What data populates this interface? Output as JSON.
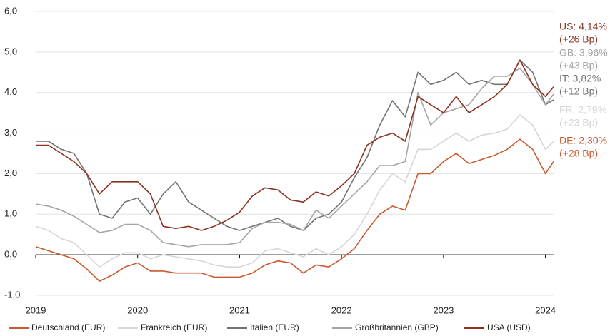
{
  "chart_data": {
    "type": "line",
    "x": [
      2019,
      2019.125,
      2019.25,
      2019.375,
      2019.5,
      2019.625,
      2019.75,
      2019.875,
      2020,
      2020.125,
      2020.25,
      2020.375,
      2020.5,
      2020.625,
      2020.75,
      2020.875,
      2021,
      2021.125,
      2021.25,
      2021.375,
      2021.5,
      2021.625,
      2021.75,
      2021.875,
      2022,
      2022.125,
      2022.25,
      2022.375,
      2022.5,
      2022.625,
      2022.75,
      2022.875,
      2023,
      2023.125,
      2023.25,
      2023.375,
      2023.5,
      2023.625,
      2023.75,
      2023.875,
      2024,
      2024.08
    ],
    "series": [
      {
        "name": "Deutschland (EUR)",
        "color": "#c95a2f",
        "values": [
          0.2,
          0.1,
          0.0,
          -0.1,
          -0.35,
          -0.65,
          -0.5,
          -0.3,
          -0.2,
          -0.4,
          -0.4,
          -0.45,
          -0.45,
          -0.45,
          -0.55,
          -0.55,
          -0.55,
          -0.45,
          -0.25,
          -0.15,
          -0.2,
          -0.45,
          -0.25,
          -0.3,
          -0.1,
          0.15,
          0.6,
          1.0,
          1.2,
          1.1,
          2.0,
          2.0,
          2.3,
          2.5,
          2.25,
          2.35,
          2.45,
          2.6,
          2.85,
          2.6,
          2.0,
          2.3
        ]
      },
      {
        "name": "Frankreich (EUR)",
        "color": "#d6d6d6",
        "values": [
          0.7,
          0.6,
          0.4,
          0.3,
          0.0,
          -0.3,
          -0.1,
          0.05,
          0.05,
          -0.1,
          0.0,
          -0.05,
          -0.1,
          -0.15,
          -0.25,
          -0.3,
          -0.3,
          -0.2,
          0.1,
          0.15,
          0.05,
          -0.05,
          0.15,
          0.0,
          0.2,
          0.5,
          1.0,
          1.6,
          2.0,
          1.8,
          2.6,
          2.6,
          2.8,
          3.0,
          2.8,
          2.95,
          3.0,
          3.1,
          3.45,
          3.2,
          2.6,
          2.79
        ]
      },
      {
        "name": "Italien (EUR)",
        "color": "#737373",
        "values": [
          2.8,
          2.8,
          2.6,
          2.5,
          2.0,
          1.0,
          0.9,
          1.3,
          1.4,
          1.0,
          1.5,
          1.8,
          1.3,
          1.1,
          0.9,
          0.7,
          0.6,
          0.7,
          0.8,
          0.9,
          0.7,
          0.6,
          0.9,
          1.0,
          1.3,
          1.9,
          2.4,
          3.2,
          3.8,
          3.4,
          4.5,
          4.2,
          4.3,
          4.5,
          4.2,
          4.3,
          4.2,
          4.2,
          4.8,
          4.5,
          3.7,
          3.82
        ]
      },
      {
        "name": "Großbritannien (GBP)",
        "color": "#a5a5a5",
        "values": [
          1.25,
          1.2,
          1.1,
          0.95,
          0.75,
          0.55,
          0.6,
          0.75,
          0.75,
          0.6,
          0.3,
          0.25,
          0.2,
          0.25,
          0.25,
          0.25,
          0.3,
          0.65,
          0.8,
          0.8,
          0.75,
          0.6,
          1.1,
          0.9,
          1.2,
          1.5,
          1.8,
          2.2,
          2.2,
          2.3,
          4.0,
          3.2,
          3.5,
          3.6,
          3.7,
          4.1,
          4.4,
          4.4,
          4.6,
          4.2,
          3.7,
          3.96
        ]
      },
      {
        "name": "USA (USD)",
        "color": "#8b3220",
        "values": [
          2.7,
          2.7,
          2.5,
          2.3,
          2.0,
          1.5,
          1.8,
          1.8,
          1.8,
          1.5,
          0.7,
          0.65,
          0.7,
          0.6,
          0.7,
          0.85,
          1.05,
          1.45,
          1.65,
          1.6,
          1.35,
          1.3,
          1.55,
          1.45,
          1.7,
          2.0,
          2.7,
          2.9,
          3.0,
          2.8,
          3.9,
          3.7,
          3.5,
          3.9,
          3.5,
          3.7,
          3.9,
          4.2,
          4.8,
          4.2,
          3.9,
          4.14
        ]
      }
    ],
    "xlim": [
      2019,
      2024.08
    ],
    "xticks": [
      2019,
      2020,
      2021,
      2022,
      2023,
      2024
    ],
    "ylim": [
      -1,
      6
    ],
    "yticks": [
      {
        "value": -1,
        "label": "-1,0"
      },
      {
        "value": 0,
        "label": "0,0"
      },
      {
        "value": 1,
        "label": "1,0"
      },
      {
        "value": 2,
        "label": "2,0"
      },
      {
        "value": 3,
        "label": "3,0"
      },
      {
        "value": 4,
        "label": "4,0"
      },
      {
        "value": 5,
        "label": "5,0"
      },
      {
        "value": 6,
        "label": "6,0"
      }
    ],
    "grid": true,
    "legend": "bottom",
    "annotations": [
      {
        "lines": [
          "US: 4,14%",
          "(+26 Bp)"
        ],
        "color": "#8b3220"
      },
      {
        "lines": [
          "GB: 3,96%",
          "(+43 Bp)"
        ],
        "color": "#a5a5a5"
      },
      {
        "lines": [
          "IT: 3,82%",
          "(+12 Bp)"
        ],
        "color": "#737373"
      },
      {
        "lines": [
          "FR: 2,79%",
          "(+23 Bp)"
        ],
        "color": "#d6d6d6"
      },
      {
        "lines": [
          "DE: 2,30%",
          "(+28 Bp)"
        ],
        "color": "#c95a2f"
      }
    ]
  }
}
